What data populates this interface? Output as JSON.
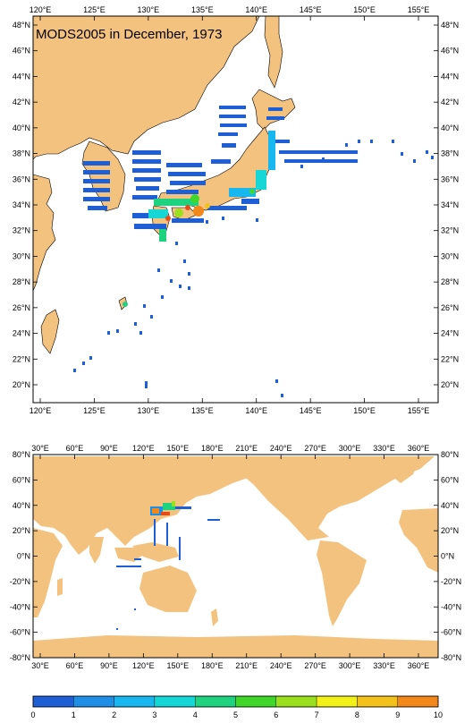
{
  "title": "MODS2005 in December, 1973",
  "colors": {
    "land": "#f4c27f",
    "ocean": "#ffffff",
    "frame": "#000000"
  },
  "top_map": {
    "lon_ticks": [
      "120°E",
      "125°E",
      "130°E",
      "135°E",
      "140°E",
      "145°E",
      "150°E",
      "155°E"
    ],
    "lat_ticks": [
      "20°N",
      "22°N",
      "24°N",
      "26°N",
      "28°N",
      "30°N",
      "32°N",
      "34°N",
      "36°N",
      "38°N",
      "40°N",
      "42°N",
      "44°N",
      "46°N",
      "48°N"
    ]
  },
  "bottom_map": {
    "lon_ticks": [
      "30°E",
      "60°E",
      "90°E",
      "120°E",
      "150°E",
      "180°E",
      "210°E",
      "240°E",
      "270°E",
      "300°E",
      "330°E",
      "360°E"
    ],
    "lat_ticks": [
      "80°N",
      "60°N",
      "40°N",
      "20°N",
      "0°N",
      "-20°N",
      "-40°N",
      "-60°N",
      "-80°N"
    ]
  },
  "colorbar": {
    "labels": [
      "0",
      "1",
      "2",
      "3",
      "4",
      "5",
      "6",
      "7",
      "8",
      "9",
      "10"
    ],
    "colors": [
      "#1f5fd6",
      "#1f8fe6",
      "#19b7ef",
      "#16d6d6",
      "#1fd27f",
      "#40d72a",
      "#9be01e",
      "#f2f21a",
      "#f2c21a",
      "#f2871a",
      "#e84a18"
    ]
  }
}
